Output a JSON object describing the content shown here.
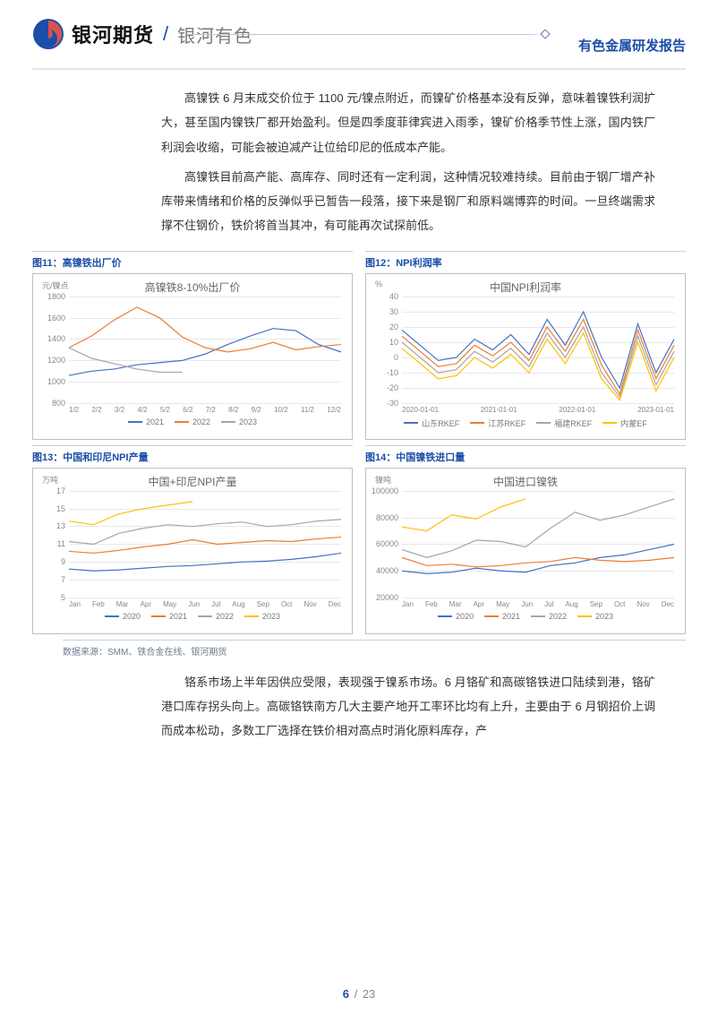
{
  "header": {
    "brand": "银河期货",
    "sub_brand": "银河有色",
    "report_title": "有色金属研发报告"
  },
  "paragraphs": {
    "p1": "高镍铁 6 月末成交价位于 1100 元/镍点附近，而镍矿价格基本没有反弹，意味着镍铁利润扩大，甚至国内镍铁厂都开始盈利。但是四季度菲律宾进入雨季，镍矿价格季节性上涨，国内铁厂利润会收缩，可能会被迫减产让位给印尼的低成本产能。",
    "p2": "高镍铁目前高产能、高库存、同时还有一定利润，这种情况较难持续。目前由于钢厂增产补库带来情绪和价格的反弹似乎已暂告一段落，接下来是钢厂和原料端博弈的时间。一旦终端需求撑不住钢价，铁价将首当其冲，有可能再次试探前低。",
    "p3": "铬系市场上半年因供应受限，表现强于镍系市场。6 月铬矿和高碳铬铁进口陆续到港，铬矿港口库存拐头向上。高碳铬铁南方几大主要产地开工率环比均有上升，主要由于 6 月钢招价上调而成本松动，多数工厂选择在铁价相对高点时消化原料库存，产"
  },
  "charts": {
    "c11": {
      "heading": "图11：高镍铁出厂价",
      "title": "高镍铁8-10%出厂价",
      "unit": "元/镍点",
      "type": "line",
      "ylim": [
        800,
        1800
      ],
      "ytick_step": 200,
      "yticks": [
        "800",
        "1000",
        "1200",
        "1400",
        "1600",
        "1800"
      ],
      "xticks": [
        "1/2",
        "2/2",
        "3/2",
        "4/2",
        "5/2",
        "6/2",
        "7/2",
        "8/2",
        "9/2",
        "10/2",
        "11/2",
        "12/2"
      ],
      "grid_color": "#e8e8e8",
      "background_color": "#ffffff",
      "series": [
        {
          "name": "2021",
          "color": "#4472c4",
          "values": [
            1060,
            1100,
            1120,
            1160,
            1180,
            1200,
            1260,
            1350,
            1430,
            1500,
            1480,
            1350,
            1280
          ]
        },
        {
          "name": "2022",
          "color": "#ed7d31",
          "values": [
            1320,
            1430,
            1580,
            1700,
            1600,
            1420,
            1320,
            1280,
            1310,
            1370,
            1300,
            1330,
            1350
          ]
        },
        {
          "name": "2023",
          "color": "#a6a6a6",
          "values": [
            1320,
            1220,
            1170,
            1120,
            1090,
            1090
          ]
        }
      ]
    },
    "c12": {
      "heading": "图12：NPI利润率",
      "title": "中国NPI利润率",
      "unit": "%",
      "type": "line",
      "ylim": [
        -30,
        40
      ],
      "ytick_step": 10,
      "yticks": [
        "-30",
        "-20",
        "-10",
        "0",
        "10",
        "20",
        "30",
        "40"
      ],
      "xticks": [
        "2020-01-01",
        "2021-01-01",
        "2022-01-01",
        "2023-01-01"
      ],
      "grid_color": "#e8e8e8",
      "background_color": "#ffffff",
      "series": [
        {
          "name": "山东RKEF",
          "color": "#4472c4",
          "values": [
            18,
            8,
            -2,
            0,
            12,
            5,
            15,
            2,
            25,
            8,
            30,
            0,
            -20,
            22,
            -10,
            12
          ]
        },
        {
          "name": "江苏RKEF",
          "color": "#ed7d31",
          "values": [
            14,
            4,
            -6,
            -4,
            8,
            1,
            10,
            -2,
            20,
            4,
            25,
            -5,
            -24,
            18,
            -14,
            8
          ]
        },
        {
          "name": "福建RKEF",
          "color": "#a6a6a6",
          "values": [
            10,
            0,
            -10,
            -8,
            4,
            -3,
            6,
            -6,
            16,
            0,
            20,
            -10,
            -26,
            14,
            -18,
            4
          ]
        },
        {
          "name": "内蒙EF",
          "color": "#ffc000",
          "values": [
            6,
            -4,
            -14,
            -12,
            0,
            -7,
            2,
            -10,
            12,
            -4,
            16,
            -14,
            -28,
            10,
            -22,
            0
          ]
        }
      ]
    },
    "c13": {
      "heading": "图13：中国和印尼NPI产量",
      "title": "中国+印尼NPI产量",
      "unit": "万吨",
      "type": "line",
      "ylim": [
        5,
        17
      ],
      "ytick_step": 2,
      "yticks": [
        "5",
        "7",
        "9",
        "11",
        "13",
        "15",
        "17"
      ],
      "xticks": [
        "Jan",
        "Feb",
        "Mar",
        "Apr",
        "May",
        "Jun",
        "Jul",
        "Aug",
        "Sep",
        "Oct",
        "Nov",
        "Dec"
      ],
      "grid_color": "#e8e8e8",
      "background_color": "#ffffff",
      "series": [
        {
          "name": "2020",
          "color": "#4472c4",
          "values": [
            8.2,
            8.0,
            8.1,
            8.3,
            8.5,
            8.6,
            8.8,
            9.0,
            9.1,
            9.3,
            9.6,
            10.0
          ]
        },
        {
          "name": "2021",
          "color": "#ed7d31",
          "values": [
            10.2,
            10.0,
            10.3,
            10.7,
            11.0,
            11.5,
            11.0,
            11.2,
            11.4,
            11.3,
            11.6,
            11.8
          ]
        },
        {
          "name": "2022",
          "color": "#a6a6a6",
          "values": [
            11.3,
            11.0,
            12.2,
            12.8,
            13.2,
            13.0,
            13.3,
            13.5,
            13.0,
            13.2,
            13.6,
            13.8
          ]
        },
        {
          "name": "2023",
          "color": "#ffc000",
          "values": [
            13.6,
            13.2,
            14.4,
            15.0,
            15.4,
            15.8
          ]
        }
      ]
    },
    "c14": {
      "heading": "图14：中国镍铁进口量",
      "title": "中国进口镍铁",
      "unit": "镍吨",
      "type": "line",
      "ylim": [
        20000,
        100000
      ],
      "ytick_step": 20000,
      "yticks": [
        "20000",
        "40000",
        "60000",
        "80000",
        "100000"
      ],
      "xticks": [
        "Jan",
        "Feb",
        "Mar",
        "Apr",
        "May",
        "Jun",
        "Jul",
        "Aug",
        "Sep",
        "Oct",
        "Nov",
        "Dec"
      ],
      "grid_color": "#e8e8e8",
      "background_color": "#ffffff",
      "series": [
        {
          "name": "2020",
          "color": "#4472c4",
          "values": [
            40000,
            38000,
            39000,
            42000,
            40000,
            39000,
            44000,
            46000,
            50000,
            52000,
            56000,
            60000
          ]
        },
        {
          "name": "2021",
          "color": "#ed7d31",
          "values": [
            50000,
            44000,
            45000,
            43000,
            44000,
            46000,
            47000,
            50000,
            48000,
            47000,
            48000,
            50000
          ]
        },
        {
          "name": "2022",
          "color": "#a6a6a6",
          "values": [
            56000,
            50000,
            55000,
            63000,
            62000,
            58000,
            72000,
            84000,
            78000,
            82000,
            88000,
            94000
          ]
        },
        {
          "name": "2023",
          "color": "#ffc000",
          "values": [
            73000,
            70000,
            82000,
            79000,
            88000,
            94000
          ]
        }
      ]
    }
  },
  "source": "数据来源：SMM、铁合金在线、银河期货",
  "page": {
    "current": "6",
    "total": "23"
  },
  "colors": {
    "brand_blue": "#1b4ea8",
    "text": "#333333",
    "muted": "#888888",
    "border": "#c3d1e6"
  }
}
